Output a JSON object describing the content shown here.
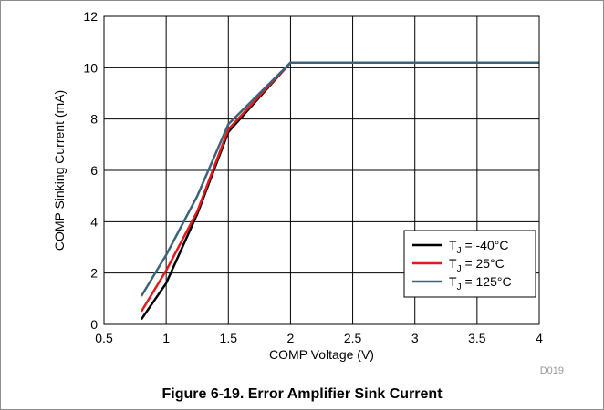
{
  "chart_data": {
    "type": "line",
    "title": "",
    "xlabel": "COMP Voltage (V)",
    "ylabel": "COMP Sinking Current (mA)",
    "xlim": [
      0.5,
      4
    ],
    "ylim": [
      0,
      12
    ],
    "x_ticks": [
      "0.5",
      "1",
      "1.5",
      "2",
      "2.5",
      "3",
      "3.5",
      "4"
    ],
    "y_ticks": [
      "0",
      "2",
      "4",
      "6",
      "8",
      "10",
      "12"
    ],
    "grid": true,
    "legend_position": "bottom-right",
    "series": [
      {
        "name_main": "T",
        "name_sub": "J",
        "name_rest": " = -40°C",
        "color": "#000000",
        "x": [
          0.8,
          1.0,
          1.25,
          1.5,
          2.0,
          4.0
        ],
        "y": [
          0.2,
          1.6,
          4.3,
          7.5,
          10.2,
          10.2
        ]
      },
      {
        "name_main": "T",
        "name_sub": "J",
        "name_rest": " = 25°C",
        "color": "#e3191c",
        "x": [
          0.8,
          1.0,
          1.25,
          1.5,
          2.0,
          4.0
        ],
        "y": [
          0.5,
          2.1,
          4.4,
          7.6,
          10.2,
          10.2
        ]
      },
      {
        "name_main": "T",
        "name_sub": "J",
        "name_rest": " = 125°C",
        "color": "#3c6478",
        "x": [
          0.8,
          1.0,
          1.25,
          1.5,
          2.0,
          4.0
        ],
        "y": [
          1.1,
          2.7,
          5.0,
          7.8,
          10.2,
          10.2
        ]
      }
    ]
  },
  "figure_code": "D019",
  "caption": "Figure 6-19. Error Amplifier Sink Current"
}
